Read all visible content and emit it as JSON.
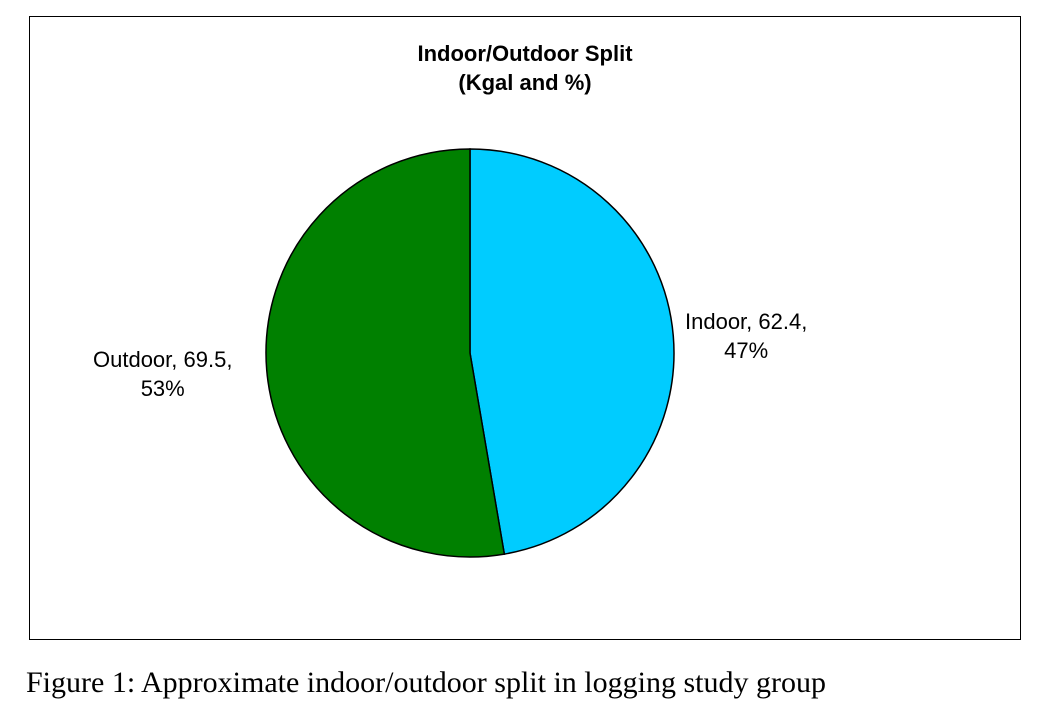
{
  "chart_data": {
    "type": "pie",
    "title": "Indoor/Outdoor Split",
    "subtitle": "(Kgal and %)",
    "start_angle": "12 o'clock, clockwise",
    "slices": [
      {
        "name": "Indoor",
        "value": 62.4,
        "percent": 47,
        "color": "#00ccff",
        "label_line1": "Indoor, 62.4,",
        "label_line2": "47%",
        "label_side": "right"
      },
      {
        "name": "Outdoor",
        "value": 69.5,
        "percent": 53,
        "color": "#008000",
        "label_line1": "Outdoor, 69.5,",
        "label_line2": "53%",
        "label_side": "left"
      }
    ],
    "legend": "none"
  },
  "caption": "Figure 1: Approximate indoor/outdoor split in logging study group"
}
